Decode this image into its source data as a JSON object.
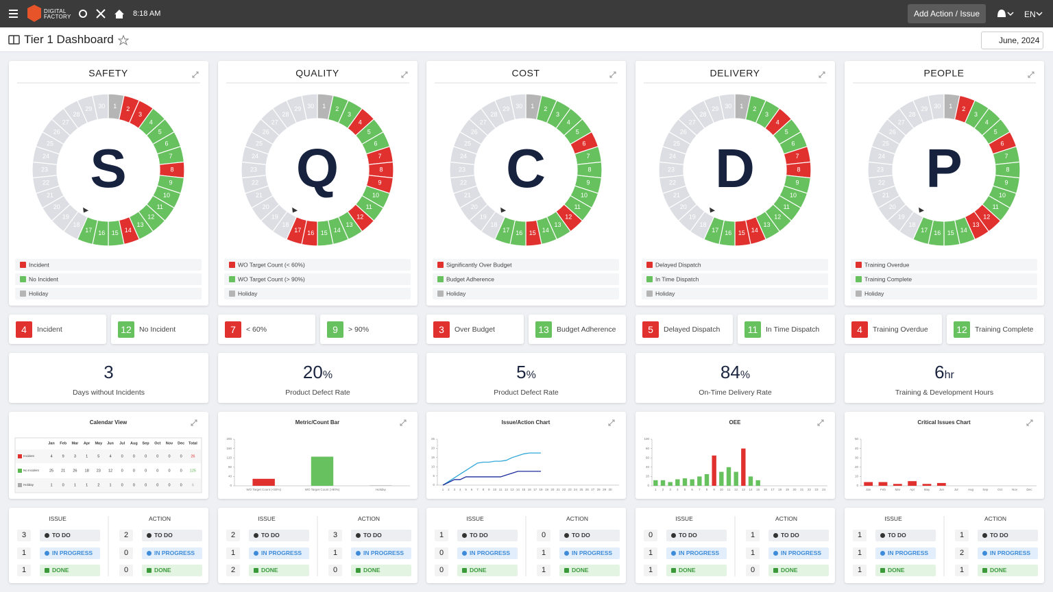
{
  "topbar": {
    "brand": [
      "DIGITAL",
      "FACTORY"
    ],
    "time": "8:18 AM",
    "add_button": "Add Action / Issue",
    "language": "EN"
  },
  "header": {
    "title": "Tier 1 Dashboard",
    "date": "June, 2024"
  },
  "days": [
    1,
    2,
    3,
    4,
    5,
    6,
    7,
    8,
    9,
    10,
    11,
    12,
    13,
    14,
    15,
    16,
    17,
    18,
    19,
    20,
    21,
    22,
    23,
    24,
    25,
    26,
    27,
    28,
    29,
    30
  ],
  "issue_heading": "ISSUE",
  "action_heading": "ACTION",
  "status_labels": [
    "TO DO",
    "IN PROGRESS",
    "DONE"
  ],
  "panels": [
    {
      "title": "SAFETY",
      "letter": "S",
      "day_status": "HRRGGGGRGGGGGRGGGFFFFFFFFFFFFF",
      "legend": [
        "Incident",
        "No Incident",
        "Holiday"
      ],
      "counts": [
        {
          "value": 4,
          "label": "Incident"
        },
        {
          "value": 12,
          "label": "No Incident"
        }
      ],
      "kpi": {
        "value": 3,
        "label": "Days without Incidents"
      },
      "chart": {
        "type": "table",
        "title": "Calendar View",
        "columns": [
          "Jan",
          "Feb",
          "Mar",
          "Apr",
          "May",
          "Jun",
          "Jul",
          "Aug",
          "Sep",
          "Oct",
          "Nov",
          "Dec",
          "Total"
        ],
        "rows": [
          {
            "name": "Incident",
            "color": "#e0312f",
            "values": [
              4,
              9,
              3,
              1,
              5,
              4,
              0,
              0,
              0,
              0,
              0,
              0,
              26
            ]
          },
          {
            "name": "No Incident",
            "color": "#5bb84f",
            "values": [
              25,
              21,
              26,
              18,
              23,
              12,
              0,
              0,
              0,
              0,
              0,
              0,
              125
            ]
          },
          {
            "name": "Holiday",
            "color": "#aaaaaa",
            "values": [
              1,
              0,
              1,
              1,
              2,
              1,
              0,
              0,
              0,
              0,
              0,
              0,
              6
            ]
          }
        ]
      },
      "issues": [
        3,
        1,
        1
      ],
      "actions": [
        2,
        0,
        0
      ]
    },
    {
      "title": "QUALITY",
      "letter": "Q",
      "day_status": "HGGRGGRRRGGRGGGRRFFFFFFFFFFFFF",
      "legend": [
        "WO Target Count (< 60%)",
        "WO Target Count (> 90%)",
        "Holiday"
      ],
      "counts": [
        {
          "value": 7,
          "label": "< 60%"
        },
        {
          "value": 9,
          "label": "> 90%"
        }
      ],
      "kpi": {
        "value": 20,
        "unit": "%",
        "label": "Product Defect Rate"
      },
      "chart": {
        "type": "bar",
        "title": "Metric/Count Bar",
        "categories": [
          "WO Target Count (<60%)",
          "WO Target Count (>90%)",
          "Holiday"
        ],
        "values": [
          30,
          125,
          2
        ],
        "colors": [
          "#e0312f",
          "#67c15e",
          "#b5b5b5"
        ],
        "ylim": [
          0,
          200
        ],
        "yticks": [
          0,
          40,
          80,
          120,
          160,
          200
        ]
      },
      "issues": [
        2,
        1,
        2
      ],
      "actions": [
        3,
        1,
        0
      ]
    },
    {
      "title": "COST",
      "letter": "C",
      "day_status": "HGGGGRGGGGGRGGRGGFFFFFFFFFFFFF",
      "legend": [
        "Significantly Over Budget",
        "Budget Adherence",
        "Holiday"
      ],
      "counts": [
        {
          "value": 3,
          "label": "Over Budget"
        },
        {
          "value": 13,
          "label": "Budget Adherence"
        }
      ],
      "kpi": {
        "value": 5,
        "unit": "%",
        "label": "Product Defect Rate"
      },
      "chart": {
        "type": "line",
        "title": "Issue/Action Chart",
        "x": [
          1,
          2,
          3,
          4,
          5,
          6,
          7,
          8,
          9,
          10,
          11,
          12,
          13,
          14,
          15,
          16,
          17,
          18,
          19,
          20,
          21,
          22,
          23,
          24,
          25,
          26,
          27,
          28,
          29,
          30
        ],
        "xlim": [
          1,
          30
        ],
        "ylim": [
          0,
          25
        ],
        "yticks": [
          0,
          5,
          10,
          15,
          20,
          25
        ],
        "series": [
          {
            "color": "#2fa8d8",
            "values": [
              0,
              2,
              4,
              6,
              8,
              10,
              12,
              12.5,
              12.5,
              13,
              13,
              13.5,
              15,
              16,
              17,
              17.5,
              17.5,
              17.5,
              null,
              null,
              null,
              null,
              null,
              null,
              null,
              null,
              null,
              null,
              null,
              null
            ]
          },
          {
            "color": "#1b2a9c",
            "values": [
              0,
              1.5,
              3,
              3,
              4.5,
              4.5,
              4.5,
              4.5,
              4.5,
              4.5,
              4.5,
              5.5,
              6.5,
              7.5,
              7.5,
              7.5,
              7.5,
              7.5,
              null,
              null,
              null,
              null,
              null,
              null,
              null,
              null,
              null,
              null,
              null,
              null
            ]
          }
        ]
      },
      "issues": [
        1,
        0,
        0
      ],
      "actions": [
        0,
        1,
        1
      ]
    },
    {
      "title": "DELIVERY",
      "letter": "D",
      "day_status": "HGGRGGRRGGGGGRRGGFFFFFFFFFFFFF",
      "legend": [
        "Delayed Dispatch",
        "In Time Dispatch",
        "Holiday"
      ],
      "counts": [
        {
          "value": 5,
          "label": "Delayed Dispatch"
        },
        {
          "value": 11,
          "label": "In Time Dispatch"
        }
      ],
      "kpi": {
        "value": 84,
        "unit": "%",
        "label": "On-Time Delivery Rate"
      },
      "chart": {
        "type": "bar",
        "title": "OEE",
        "categories": [
          1,
          2,
          3,
          4,
          5,
          6,
          7,
          8,
          9,
          10,
          11,
          12,
          13,
          14,
          15,
          16,
          17,
          18,
          19,
          20,
          21,
          22,
          23,
          24
        ],
        "values": [
          12,
          12,
          8,
          14,
          16,
          14,
          20,
          25,
          65,
          30,
          40,
          30,
          80,
          20,
          12,
          0,
          0,
          0,
          0,
          0,
          0,
          0,
          0,
          0
        ],
        "colors": [
          "#67c15e",
          "#67c15e",
          "#67c15e",
          "#67c15e",
          "#67c15e",
          "#67c15e",
          "#67c15e",
          "#67c15e",
          "#e0312f",
          "#67c15e",
          "#67c15e",
          "#67c15e",
          "#e0312f",
          "#67c15e",
          "#67c15e",
          "#67c15e",
          "#67c15e",
          "#67c15e",
          "#67c15e",
          "#67c15e",
          "#67c15e",
          "#67c15e",
          "#67c15e",
          "#67c15e"
        ],
        "ylim": [
          0,
          100
        ],
        "yticks": [
          0,
          20,
          40,
          60,
          80,
          100
        ]
      },
      "issues": [
        0,
        1,
        1
      ],
      "actions": [
        1,
        1,
        0
      ]
    },
    {
      "title": "PEOPLE",
      "letter": "P",
      "day_status": "HRGGGRGGGGGRRGGGGFFFFFFFFFFFFF",
      "legend": [
        "Training Overdue",
        "Training Complete",
        "Holiday"
      ],
      "counts": [
        {
          "value": 4,
          "label": "Training Overdue"
        },
        {
          "value": 12,
          "label": "Training Complete"
        }
      ],
      "kpi": {
        "value": 6,
        "unit": "hr",
        "label": "Training & Development Hours"
      },
      "chart": {
        "type": "bar",
        "title": "Critical Issues Chart",
        "categories": [
          "Jan",
          "Feb",
          "Mar",
          "Apr",
          "May",
          "Jun",
          "Jul",
          "Aug",
          "Sep",
          "Oct",
          "Nov",
          "Dec"
        ],
        "values": [
          4,
          4,
          2,
          5,
          2,
          3,
          0,
          0,
          0,
          0,
          0,
          0
        ],
        "color": "#e0312f",
        "ylim": [
          0,
          50
        ],
        "yticks": [
          0,
          10,
          20,
          30,
          40,
          50
        ]
      },
      "issues": [
        1,
        1,
        1
      ],
      "actions": [
        1,
        2,
        1
      ]
    }
  ]
}
